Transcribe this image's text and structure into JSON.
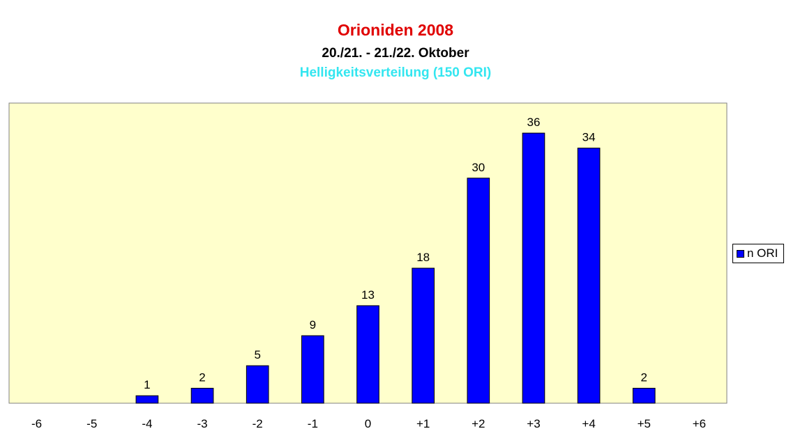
{
  "header": {
    "title": "Orioniden 2008",
    "subtitle": "20./21. - 21./22. Oktober",
    "subtitle2": "Helligkeitsverteilung (150 ORI)"
  },
  "colors": {
    "title": "#e00000",
    "subtitle": "#000000",
    "subtitle2": "#33e6f0",
    "plot_bg": "#ffffcc",
    "bar": "#0000ff"
  },
  "chart_data": {
    "type": "bar",
    "categories": [
      "-6",
      "-5",
      "-4",
      "-3",
      "-2",
      "-1",
      "0",
      "+1",
      "+2",
      "+3",
      "+4",
      "+5",
      "+6"
    ],
    "series": [
      {
        "name": "n ORI",
        "values": [
          0,
          0,
          1,
          2,
          5,
          9,
          13,
          18,
          30,
          36,
          34,
          2,
          0
        ]
      }
    ],
    "data_labels": [
      "",
      "",
      "1",
      "2",
      "5",
      "9",
      "13",
      "18",
      "30",
      "36",
      "34",
      "2",
      ""
    ],
    "ylim": [
      0,
      40
    ],
    "grid": false,
    "legend_position": "right"
  }
}
